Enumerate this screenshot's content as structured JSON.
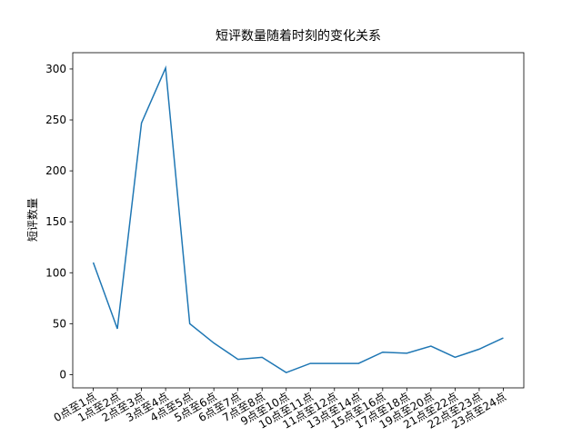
{
  "chart_data": {
    "type": "line",
    "title": "短评数量随着时刻的变化关系",
    "y_label": "短评数量",
    "categories": [
      "0点至1点",
      "1点至2点",
      "2点至3点",
      "3点至4点",
      "4点至5点",
      "5点至6点",
      "6点至7点",
      "7点至8点",
      "9点至10点",
      "10点至11点",
      "11点至12点",
      "13点至14点",
      "15点至16点",
      "17点至18点",
      "19点至20点",
      "21点至22点",
      "22点至23点",
      "23点至24点"
    ],
    "values": [
      110,
      45,
      247,
      301,
      50,
      31,
      15,
      17,
      2,
      11,
      11,
      11,
      22,
      21,
      28,
      17,
      25,
      36
    ],
    "color": "#1f77b4",
    "ylim": [
      -13,
      316
    ],
    "yticks": [
      0,
      50,
      100,
      150,
      200,
      250,
      300
    ],
    "grid": false
  }
}
